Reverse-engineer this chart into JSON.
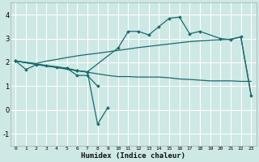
{
  "xlabel": "Humidex (Indice chaleur)",
  "bg_color": "#cde8e5",
  "grid_color": "#ffffff",
  "line_color": "#1a6b6b",
  "xlim": [
    -0.5,
    23.5
  ],
  "ylim": [
    -1.5,
    4.5
  ],
  "xticks": [
    0,
    1,
    2,
    3,
    4,
    5,
    6,
    7,
    8,
    9,
    10,
    11,
    12,
    13,
    14,
    15,
    16,
    17,
    18,
    19,
    20,
    21,
    22,
    23
  ],
  "yticks": [
    -1,
    0,
    1,
    2,
    3,
    4
  ],
  "series1_x": [
    0,
    1,
    2,
    3,
    4,
    5,
    6,
    7,
    10,
    11,
    12,
    13,
    14,
    15,
    16,
    17,
    18,
    20,
    21,
    22,
    23
  ],
  "series1_y": [
    2.05,
    1.7,
    1.9,
    1.85,
    1.8,
    1.75,
    1.65,
    1.6,
    2.6,
    3.3,
    3.3,
    3.15,
    3.5,
    3.85,
    3.9,
    3.2,
    3.3,
    3.0,
    2.95,
    3.07,
    0.6
  ],
  "series2_x": [
    0,
    5,
    6,
    7,
    8
  ],
  "series2_y": [
    2.05,
    1.75,
    1.45,
    1.45,
    1.0
  ],
  "series3_x": [
    0,
    6,
    7,
    8,
    9
  ],
  "series3_y": [
    2.05,
    1.65,
    1.6,
    -0.6,
    0.1
  ],
  "series4_x": [
    0,
    2,
    3,
    4,
    5,
    6,
    7,
    8,
    9,
    10,
    11,
    12,
    13,
    14,
    15,
    16,
    17,
    18,
    19,
    20,
    21,
    22,
    23
  ],
  "series4_y": [
    2.05,
    1.95,
    2.05,
    2.12,
    2.2,
    2.27,
    2.33,
    2.38,
    2.44,
    2.5,
    2.56,
    2.62,
    2.67,
    2.72,
    2.77,
    2.82,
    2.87,
    2.9,
    2.93,
    2.95,
    2.97,
    3.07,
    0.65
  ],
  "series5_x": [
    0,
    9,
    10,
    11,
    12,
    13,
    14,
    15,
    16,
    17,
    18,
    19,
    20,
    21,
    22,
    23
  ],
  "series5_y": [
    2.05,
    1.45,
    1.4,
    1.4,
    1.38,
    1.38,
    1.38,
    1.35,
    1.3,
    1.28,
    1.25,
    1.22,
    1.22,
    1.22,
    1.2,
    1.2
  ]
}
